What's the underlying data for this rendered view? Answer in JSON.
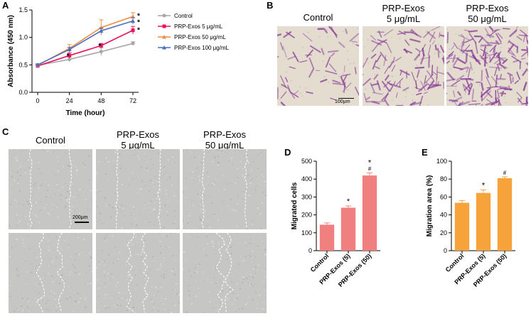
{
  "panels": {
    "a": "A",
    "b": "B",
    "c": "C",
    "d": "D",
    "e": "E"
  },
  "panel_b": {
    "labels": [
      "Control",
      "PRP-Exos",
      "5 μg/mL",
      "PRP-Exos",
      "50 μg/mL"
    ],
    "scale_bar": "100μm",
    "stain_color": "#8a3f99",
    "background_color": "#e4dccf"
  },
  "panel_c": {
    "labels": [
      "Control",
      "PRP-Exos",
      "5 μg/mL",
      "PRP-Exos",
      "50 μg/mL"
    ],
    "scale_bar": "200μm"
  },
  "chart_data": [
    {
      "type": "line",
      "panel": "A",
      "title": "",
      "xlabel": "Time (hour)",
      "ylabel": "Absorbance (450 nm)",
      "x": [
        0,
        24,
        48,
        72
      ],
      "xticks": [
        "0",
        "24",
        "48",
        "72"
      ],
      "yticks": [
        "0.0",
        "0.5",
        "1.0",
        "1.5"
      ],
      "ylim": [
        0,
        1.5
      ],
      "legend_position": "right",
      "series": [
        {
          "name": "Control",
          "values": [
            0.49,
            0.6,
            0.74,
            0.89
          ],
          "errors": [
            0.02,
            0.04,
            0.07,
            0.03
          ],
          "color": "#a6a6a6",
          "marker": "circle"
        },
        {
          "name": "PRP-Exos 5 μg/mL",
          "values": [
            0.48,
            0.67,
            0.85,
            1.13
          ],
          "errors": [
            0.02,
            0.05,
            0.04,
            0.07
          ],
          "color": "#e8135c",
          "marker": "square"
        },
        {
          "name": "PRP-Exos 50 μg/mL",
          "values": [
            0.49,
            0.8,
            1.18,
            1.38
          ],
          "errors": [
            0.02,
            0.07,
            0.14,
            0.07
          ],
          "color": "#f28c3a",
          "marker": "triangle"
        },
        {
          "name": "PRP-Exos 100 μg/mL",
          "values": [
            0.5,
            0.78,
            1.12,
            1.3
          ],
          "errors": [
            0.02,
            0.04,
            0.05,
            0.06
          ],
          "color": "#4a6fc2",
          "marker": "triangle"
        }
      ],
      "annotations": [
        "*",
        "*",
        "*",
        "*",
        "*"
      ]
    },
    {
      "type": "bar",
      "panel": "D",
      "ylabel": "Migrated cells",
      "categories": [
        "Control",
        "PRP-Exos (5)",
        "PRP-Exos (50)"
      ],
      "values": [
        145,
        240,
        420
      ],
      "errors": [
        10,
        10,
        15
      ],
      "ylim": [
        0,
        500
      ],
      "yticks": [
        "0",
        "100",
        "200",
        "300",
        "400",
        "500"
      ],
      "color": "#f08080",
      "annotations": [
        "",
        "*",
        "*\u0000#"
      ]
    },
    {
      "type": "bar",
      "panel": "E",
      "ylabel": "Migration area (%)",
      "categories": [
        "Control",
        "PRP-Exos (5)",
        "PRP-Exos (50)"
      ],
      "values": [
        53.5,
        64.5,
        81
      ],
      "errors": [
        2.5,
        3.5,
        1.5
      ],
      "ylim": [
        0,
        100
      ],
      "yticks": [
        "0",
        "20",
        "40",
        "60",
        "80",
        "100"
      ],
      "color": "#f5a33a",
      "annotations": [
        "",
        "*",
        "#"
      ]
    }
  ]
}
